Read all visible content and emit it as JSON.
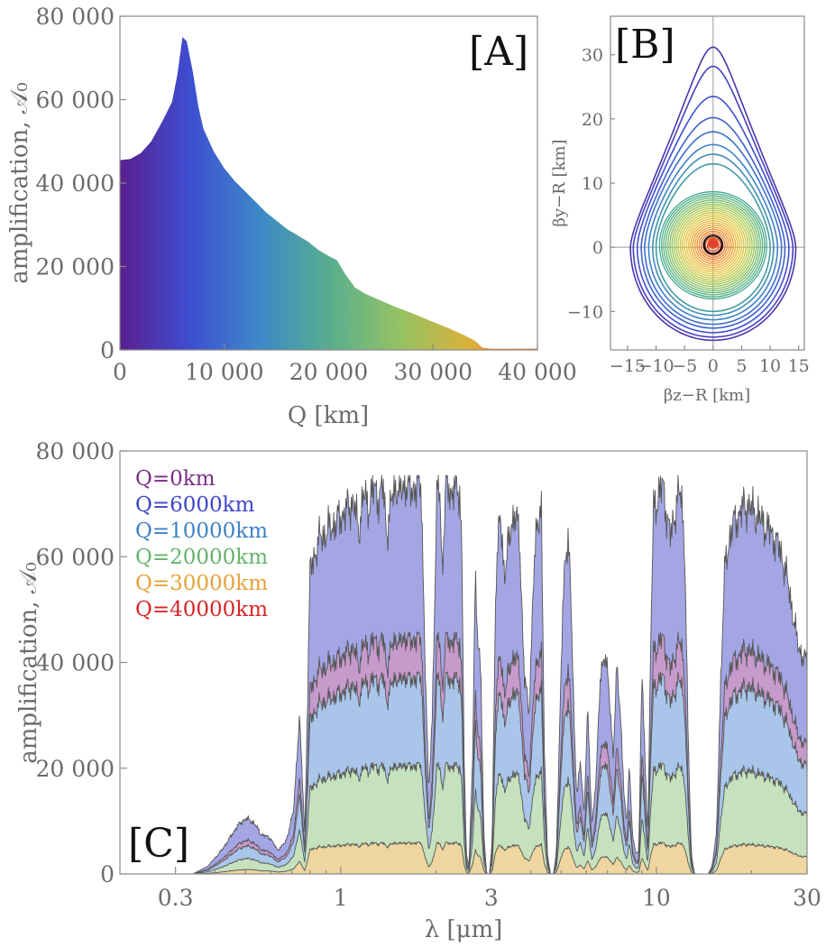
{
  "chart_data": [
    {
      "panel": "[A]",
      "type": "area",
      "xlabel": "Q [km]",
      "ylabel": "amplification, 𝒜₀",
      "xlim": [
        0,
        40000
      ],
      "ylim": [
        0,
        80000
      ],
      "xticks": [
        "0",
        "10 000",
        "20 000",
        "30 000",
        "40 000"
      ],
      "yticks": [
        "0",
        "20 000",
        "40 000",
        "60 000",
        "80 000"
      ],
      "x": [
        0,
        1000,
        2000,
        3000,
        4000,
        4500,
        5000,
        5500,
        6000,
        6400,
        7000,
        7500,
        8000,
        9000,
        10000,
        11000,
        12000,
        13000,
        14000,
        15000,
        16000,
        17000,
        18000,
        19000,
        20000,
        20800,
        21500,
        22500,
        23500,
        25000,
        26500,
        28000,
        30000,
        31500,
        33000,
        34000,
        34700,
        35500,
        40000
      ],
      "values": [
        45500,
        45800,
        47200,
        50000,
        54500,
        57000,
        59500,
        66000,
        75000,
        74000,
        66500,
        58500,
        53000,
        47500,
        43500,
        40500,
        38000,
        35500,
        33000,
        31000,
        29000,
        27500,
        26000,
        24000,
        22500,
        21500,
        18500,
        15000,
        13500,
        11800,
        10200,
        8800,
        6700,
        5200,
        3500,
        2200,
        600,
        300,
        300
      ],
      "colormap": [
        "#5a1f8e",
        "#3e4ed0",
        "#3d88c9",
        "#58ad90",
        "#93c265",
        "#d9b13c",
        "#ef6a26"
      ]
    },
    {
      "panel": "[B]",
      "type": "contour",
      "xlabel": "βz−R [km]",
      "ylabel": "βy−R [km]",
      "xlim": [
        -18,
        16
      ],
      "ylim": [
        -16,
        36
      ],
      "xticks": [
        "−15",
        "−10",
        "−5",
        "0",
        "5",
        "10",
        "15"
      ],
      "yticks": [
        "−10",
        "0",
        "10",
        "20",
        "30"
      ],
      "outer_contours": [
        {
          "r": 14.5,
          "top": 31.2
        },
        {
          "r": 14.0,
          "top": 28.2
        },
        {
          "r": 13.3,
          "top": 23.5
        },
        {
          "r": 12.6,
          "top": 20.2
        },
        {
          "r": 12.0,
          "top": 18.0
        },
        {
          "r": 11.3,
          "top": 16.0
        },
        {
          "r": 10.6,
          "top": 14.5
        },
        {
          "r": 10.0,
          "top": 13.0
        }
      ],
      "inner_circles": {
        "r_max": 9.4,
        "r_min": 1.0,
        "count": 24
      },
      "source_circle": {
        "r": 1.6,
        "cx": 0,
        "cy": 0.4
      },
      "source_disk": {
        "r": 0.9,
        "cx": 0,
        "cy": 0.6
      }
    },
    {
      "panel": "[C]",
      "type": "area",
      "xlabel": "λ [μm]",
      "ylabel": "amplification, 𝒜₀",
      "xscale": "log",
      "xlim": [
        0.2,
        30
      ],
      "ylim": [
        0,
        80000
      ],
      "xticks": [
        0.3,
        1,
        3,
        10,
        30
      ],
      "xtick_labels": [
        "0.3",
        "1",
        "3",
        "10",
        "30"
      ],
      "yticks": [
        "0",
        "20 000",
        "40 000",
        "60 000",
        "80 000"
      ],
      "legend": [
        "Q=0km",
        "Q=6000km",
        "Q=10000km",
        "Q=20000km",
        "Q=30000km",
        "Q=40000km"
      ],
      "legend_colors": [
        "#7c2f86",
        "#3f46c9",
        "#3d83c6",
        "#66b36b",
        "#e6a23c",
        "#d92626"
      ],
      "legend_position": "top-left",
      "series": [
        {
          "name": "Q=6000km",
          "peak": 75000,
          "color": "#a3a6e3"
        },
        {
          "name": "Q=0km",
          "peak": 45500,
          "color": "#c79acc"
        },
        {
          "name": "Q=10000km",
          "peak": 38000,
          "color": "#a9c5ea"
        },
        {
          "name": "Q=20000km",
          "peak": 21000,
          "color": "#c6e1bd"
        },
        {
          "name": "Q=30000km",
          "peak": 6000,
          "color": "#efd6a0"
        }
      ],
      "transmission": {
        "lambda": [
          0.2,
          0.34,
          0.38,
          0.42,
          0.47,
          0.5,
          0.53,
          0.56,
          0.6,
          0.63,
          0.67,
          0.71,
          0.74,
          0.77,
          0.8,
          0.85,
          0.9,
          0.95,
          1.0,
          1.05,
          1.1,
          1.14,
          1.18,
          1.22,
          1.26,
          1.32,
          1.36,
          1.4,
          1.45,
          1.5,
          1.55,
          1.62,
          1.68,
          1.74,
          1.8,
          1.85,
          1.9,
          1.95,
          2.02,
          2.06,
          2.1,
          2.15,
          2.2,
          2.25,
          2.32,
          2.38,
          2.42,
          2.46,
          2.5,
          2.55,
          2.62,
          2.67,
          2.72,
          2.78,
          2.84,
          2.9,
          2.96,
          3.02,
          3.1,
          3.2,
          3.3,
          3.42,
          3.55,
          3.68,
          3.82,
          3.95,
          4.08,
          4.2,
          4.32,
          4.42,
          4.52,
          4.62,
          4.72,
          4.82,
          4.95,
          5.05,
          5.15,
          5.25,
          5.35,
          5.5,
          5.6,
          5.75,
          5.9,
          6.05,
          6.25,
          6.45,
          6.65,
          6.85,
          7.05,
          7.3,
          7.5,
          7.7,
          7.9,
          8.05,
          8.2,
          8.4,
          8.6,
          8.8,
          9.0,
          9.2,
          9.4,
          9.6,
          9.8,
          10.0,
          10.2,
          10.5,
          10.8,
          11.1,
          11.4,
          11.7,
          12.0,
          12.3,
          12.6,
          12.9,
          13.2,
          13.5,
          13.8,
          14.2,
          14.6,
          15.0,
          15.5,
          16.0,
          16.5,
          17.0,
          17.5,
          18.0,
          18.5,
          19.0,
          20.0,
          21.0,
          22.0,
          23.0,
          24.0,
          25.0,
          26.0,
          27.0,
          28.0,
          29.0,
          30.0
        ],
        "t": [
          0,
          0,
          0.02,
          0.06,
          0.12,
          0.14,
          0.13,
          0.1,
          0.09,
          0.06,
          0.08,
          0.16,
          0.4,
          0.1,
          0.76,
          0.84,
          0.86,
          0.88,
          0.9,
          0.92,
          0.94,
          0.86,
          0.96,
          0.92,
          0.97,
          0.95,
          0.98,
          0.86,
          0.94,
          0.98,
          0.96,
          0.99,
          0.96,
          0.99,
          0.97,
          0.55,
          0.2,
          0.4,
          0.96,
          0.99,
          0.75,
          0.97,
          0.99,
          0.95,
          0.98,
          0.97,
          0.82,
          0.3,
          0.05,
          0.02,
          0.3,
          0.76,
          0.6,
          0.5,
          0.1,
          0,
          0,
          0.08,
          0.75,
          0.9,
          0.76,
          0.84,
          0.92,
          0.85,
          0.5,
          0.4,
          0.75,
          0.88,
          0.94,
          0.3,
          0.05,
          0,
          0,
          0.05,
          0.4,
          0.66,
          0.8,
          0.86,
          0.72,
          0.35,
          0.2,
          0.28,
          0.15,
          0.42,
          0.12,
          0.25,
          0.5,
          0.56,
          0.48,
          0.3,
          0.52,
          0.4,
          0.2,
          0.12,
          0.28,
          0.1,
          0.05,
          0.06,
          0.52,
          0.28,
          0.1,
          0.6,
          0.92,
          0.94,
          0.96,
          0.98,
          0.9,
          0.85,
          0.9,
          0.96,
          0.95,
          0.82,
          0.35,
          0.05,
          0,
          0,
          0,
          0,
          0,
          0.02,
          0.1,
          0.5,
          0.78,
          0.84,
          0.88,
          0.9,
          0.91,
          0.93,
          0.92,
          0.9,
          0.88,
          0.86,
          0.84,
          0.8,
          0.74,
          0.66,
          0.58,
          0.55,
          0.53
        ]
      }
    }
  ]
}
